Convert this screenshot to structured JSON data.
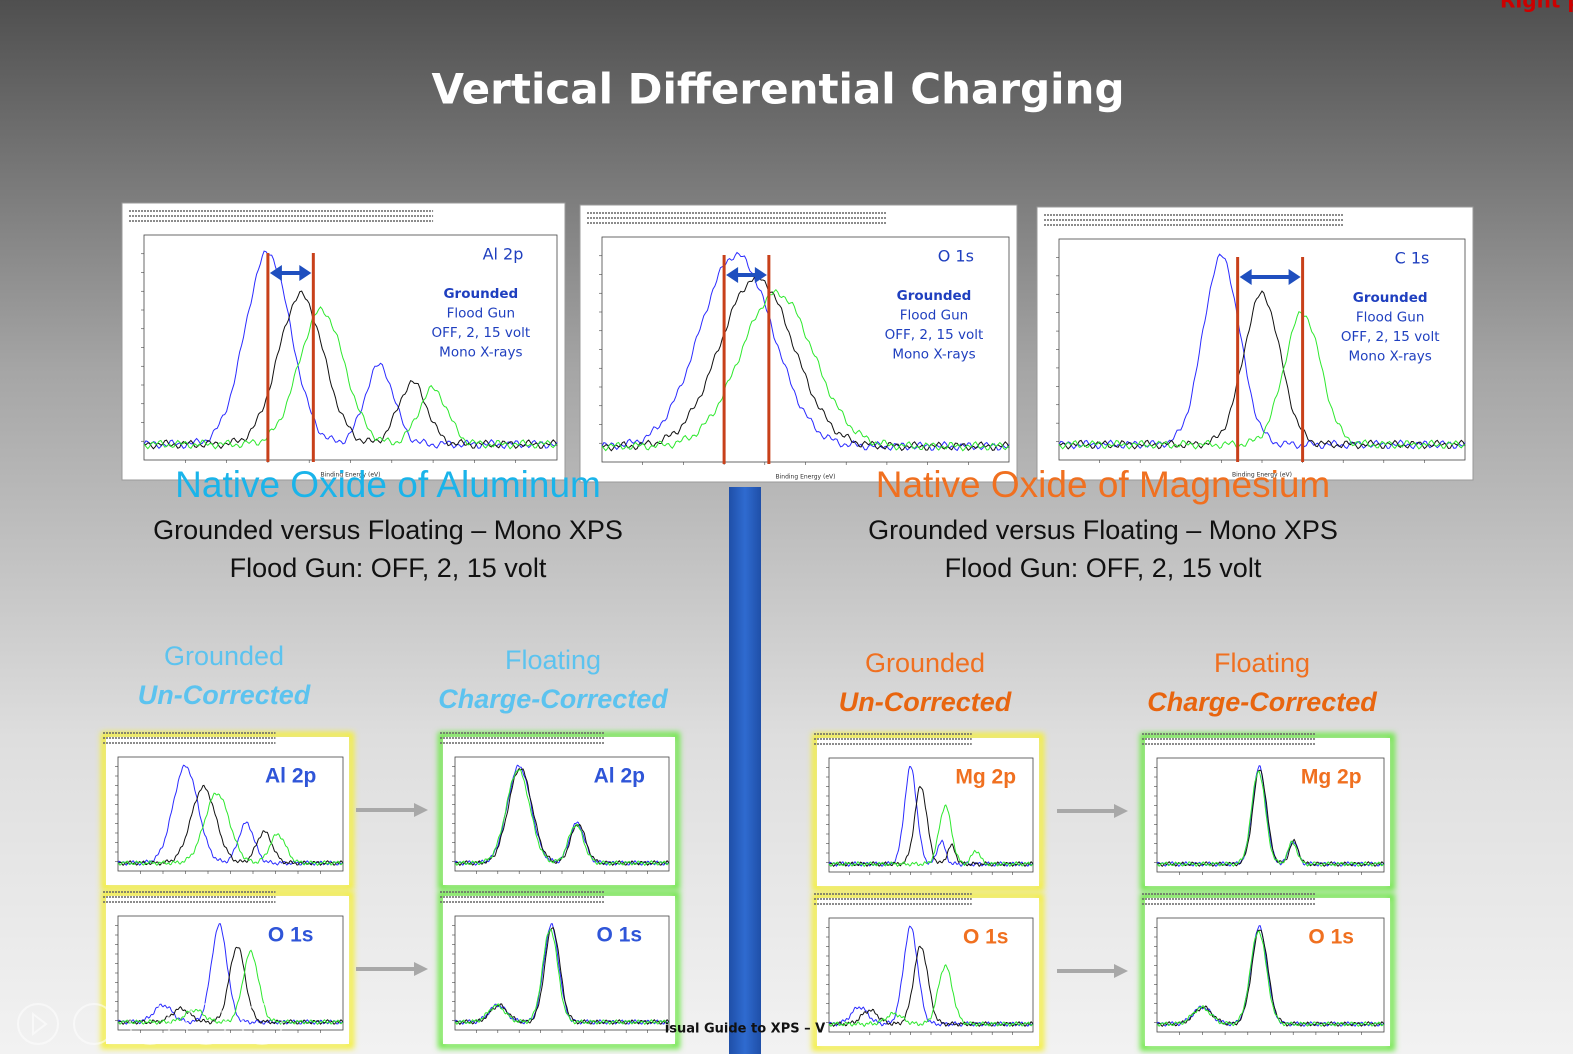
{
  "title": "Vertical Differential Charging",
  "corner_note": "Right p",
  "top_panels": [
    {
      "label": "Al 2p",
      "note": [
        "Grounded",
        "Flood Gun",
        "OFF,  2, 15 volt",
        "Mono X-rays"
      ],
      "axis_label": "Binding Energy (eV)"
    },
    {
      "label": "O 1s",
      "note": [
        "Grounded",
        "Flood Gun",
        "OFF, 2, 15 volt",
        "Mono X-rays"
      ],
      "axis_label": "Binding Energy (eV)"
    },
    {
      "label": "C 1s",
      "note": [
        "Grounded",
        "Flood Gun",
        "OFF, 2, 15 volt",
        "Mono X-rays"
      ],
      "axis_label": "Binding Energy (eV)"
    }
  ],
  "sections": [
    {
      "heading": "Native Oxide of Aluminum",
      "lines": [
        "Grounded versus Floating – Mono XPS",
        "Flood Gun:   OFF,   2,  15 volt"
      ],
      "columns": [
        {
          "title": "Grounded",
          "subtitle": "Un-Corrected"
        },
        {
          "title": "Floating",
          "subtitle": "Charge-Corrected"
        }
      ],
      "panels": [
        [
          "Al 2p",
          "Al 2p"
        ],
        [
          "O 1s",
          "O 1s"
        ]
      ]
    },
    {
      "heading": "Native Oxide of Magnesium",
      "lines": [
        "Grounded versus Floating – Mono XPS",
        "Flood Gun:  OFF,   2,  15 volt"
      ],
      "columns": [
        {
          "title": "Grounded",
          "subtitle": "Un-Corrected"
        },
        {
          "title": "Floating",
          "subtitle": "Charge-Corrected"
        }
      ],
      "panels": [
        [
          "Mg 2p",
          "Mg 2p"
        ],
        [
          "O 1s",
          "O 1s"
        ]
      ]
    }
  ],
  "footer": "isual Guide to XPS – V"
}
